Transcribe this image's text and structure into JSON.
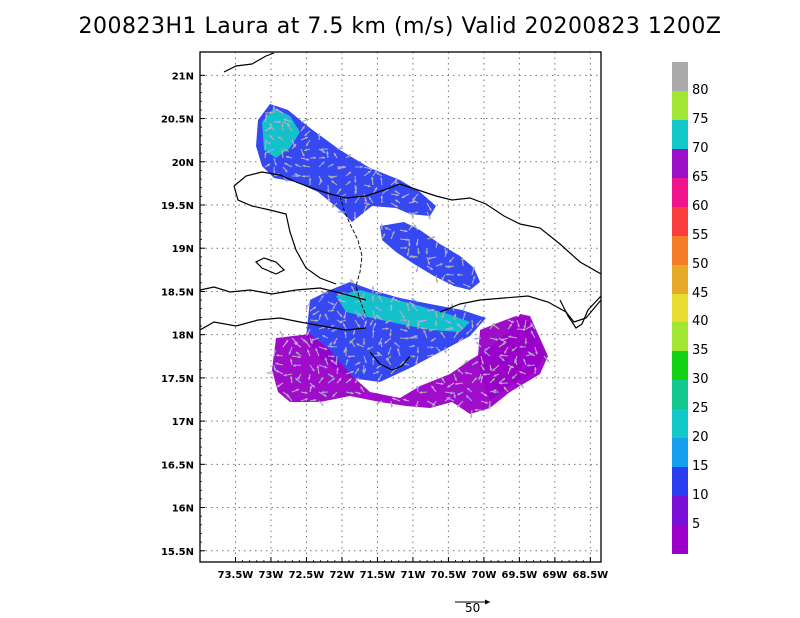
{
  "title": "200823H1 Laura at 7.5 km (m/s) Valid 20200823 1200Z",
  "map": {
    "lat_labels": [
      "21N",
      "20.5N",
      "20N",
      "19.5N",
      "19N",
      "18.5N",
      "18N",
      "17.5N",
      "17N",
      "16.5N",
      "16N",
      "15.5N"
    ],
    "lat_values": [
      21,
      20.5,
      20,
      19.5,
      19,
      18.5,
      18,
      17.5,
      17,
      16.5,
      16,
      15.5
    ],
    "lon_labels": [
      "73.5W",
      "73W",
      "72.5W",
      "72W",
      "71.5W",
      "71W",
      "70.5W",
      "70W",
      "69.5W",
      "69W",
      "68.5W"
    ],
    "lon_values": [
      -73.5,
      -73,
      -72.5,
      -72,
      -71.5,
      -71,
      -70.5,
      -70,
      -69.5,
      -69,
      -68.5
    ],
    "lon_range": [
      -74.0,
      -68.35
    ],
    "lat_range": [
      15.37,
      21.27
    ],
    "grid": "dotted",
    "reference_vector_label": "50",
    "coastline_color": "#000000",
    "wind_colors": {
      "calm": "#9a00c8",
      "weak": "#7a10d8",
      "moderate": "#2a3ef0",
      "fresh": "#14a0ee",
      "strong": "#12c8c8",
      "max": "#aaaaaa"
    }
  },
  "colorbar": {
    "labels": [
      "80",
      "75",
      "70",
      "65",
      "60",
      "55",
      "50",
      "45",
      "40",
      "35",
      "30",
      "25",
      "20",
      "15",
      "10",
      "5"
    ],
    "colors": [
      "#aaaaaa",
      "#a0e632",
      "#12c8c8",
      "#9a10c8",
      "#f0148c",
      "#fa3c3c",
      "#f57d28",
      "#e6aa28",
      "#e6dc32",
      "#a0e632",
      "#12d212",
      "#12c88c",
      "#12c8c8",
      "#14a0ee",
      "#2a3ef0",
      "#7a10d8",
      "#9a00c8"
    ]
  }
}
